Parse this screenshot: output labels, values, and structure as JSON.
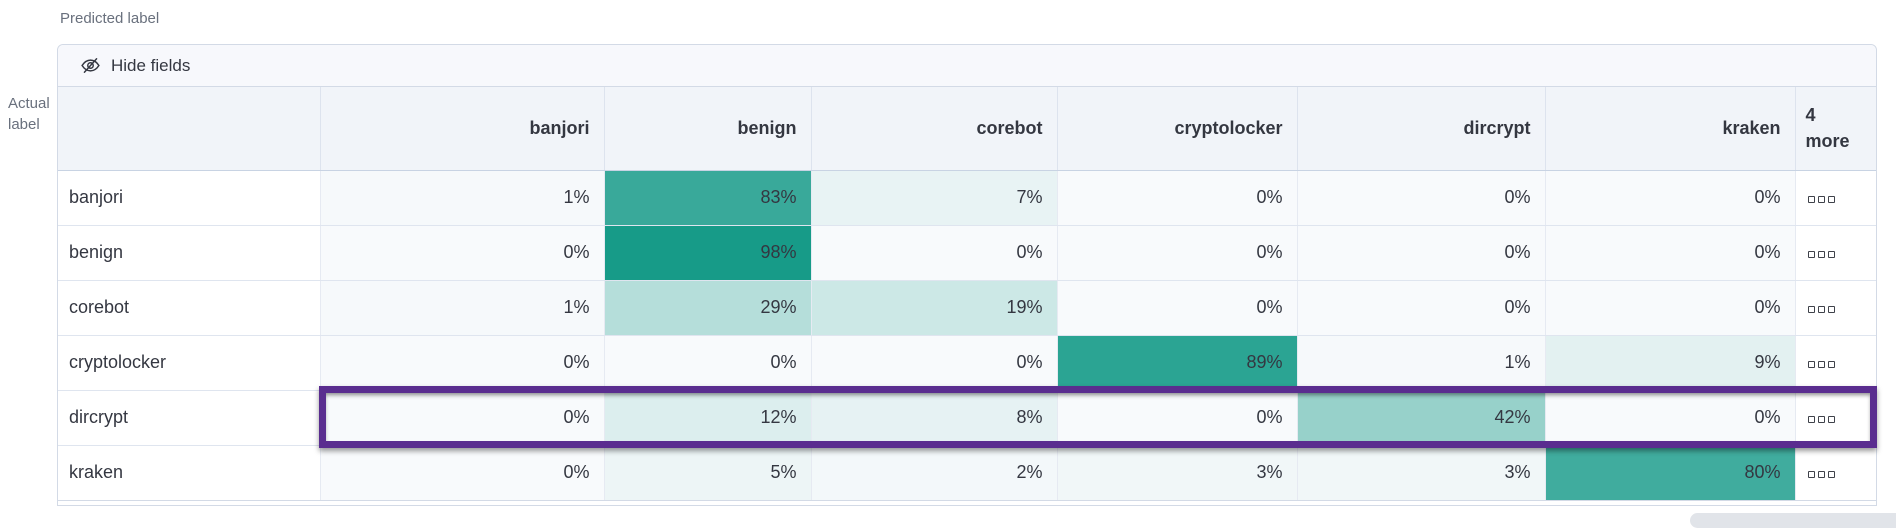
{
  "colors": {
    "heat_base": "#129986",
    "zero_tint": "#F8FAFC",
    "header_bg": "#F1F4F9",
    "toolbar_bg": "#F7F8FC",
    "border": "#D3DAE6",
    "highlight_purple": "#5A2D8F",
    "text": "#343741",
    "muted_text": "#69707D"
  },
  "axis_labels": {
    "predicted": "Predicted label",
    "actual": [
      "Actual",
      "label"
    ]
  },
  "toolbar": {
    "hide_fields_label": "Hide fields",
    "hide_fields_icon": "eye-closed-icon"
  },
  "chart_data": {
    "type": "heatmap",
    "columns": [
      "banjori",
      "benign",
      "corebot",
      "cryptolocker",
      "dircrypt",
      "kraken"
    ],
    "more_columns_header": [
      "4",
      "more"
    ],
    "rows": [
      "banjori",
      "benign",
      "corebot",
      "cryptolocker",
      "dircrypt",
      "kraken"
    ],
    "unit": "%",
    "values_percent": [
      [
        1,
        83,
        7,
        0,
        0,
        0
      ],
      [
        0,
        98,
        0,
        0,
        0,
        0
      ],
      [
        1,
        29,
        19,
        0,
        0,
        0
      ],
      [
        0,
        0,
        0,
        89,
        1,
        9
      ],
      [
        0,
        12,
        8,
        0,
        42,
        0
      ],
      [
        0,
        5,
        2,
        3,
        3,
        80
      ]
    ],
    "row_actions_icon": "boxes-horizontal-icon",
    "highlighted_row": "dircrypt",
    "legend_position": "none",
    "grid": true
  }
}
